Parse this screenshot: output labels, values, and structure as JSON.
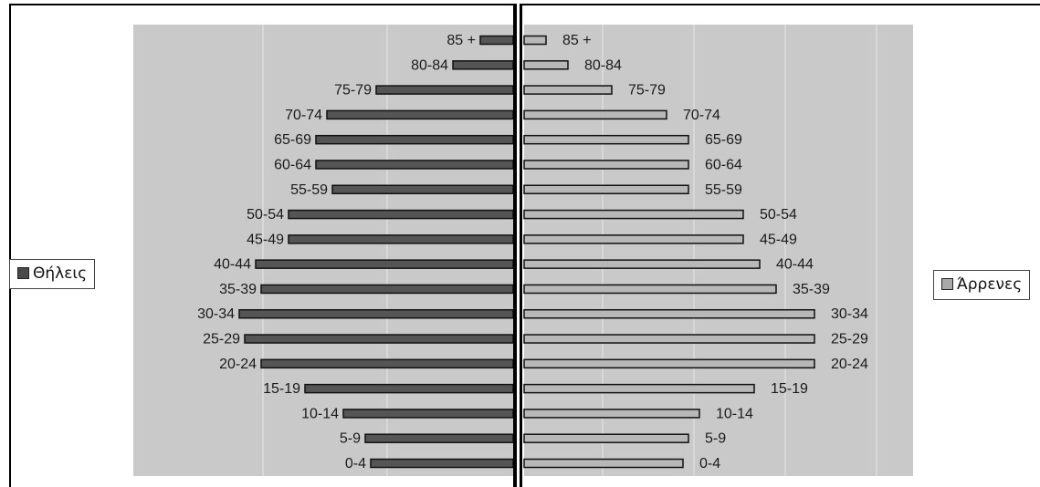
{
  "chart_data": {
    "type": "bar",
    "orientation": "horizontal",
    "layout": "population-pyramid",
    "categories": [
      "0-4",
      "5-9",
      "10-14",
      "15-19",
      "20-24",
      "25-29",
      "30-34",
      "35-39",
      "40-44",
      "45-49",
      "50-54",
      "55-59",
      "60-64",
      "65-69",
      "70-74",
      "75-79",
      "80-84",
      "85 +"
    ],
    "series": [
      {
        "name": "Θήλεις",
        "side": "left",
        "values": [
          26,
          27,
          31,
          38,
          46,
          49,
          50,
          46,
          47,
          41,
          41,
          33,
          36,
          36,
          34,
          25,
          11,
          6
        ]
      },
      {
        "name": "Άρρενες",
        "side": "right",
        "values": [
          29,
          30,
          32,
          42,
          53,
          53,
          53,
          46,
          43,
          40,
          40,
          30,
          30,
          30,
          26,
          16,
          8,
          4
        ]
      }
    ],
    "left_color": "#555555",
    "right_color": "#b8b8b8",
    "plot_background": "#c9c9c9",
    "grid": true,
    "legend_position": "outside-left-and-right"
  },
  "legend": {
    "left_label": "Θήλεις",
    "right_label": "Άρρενες"
  }
}
